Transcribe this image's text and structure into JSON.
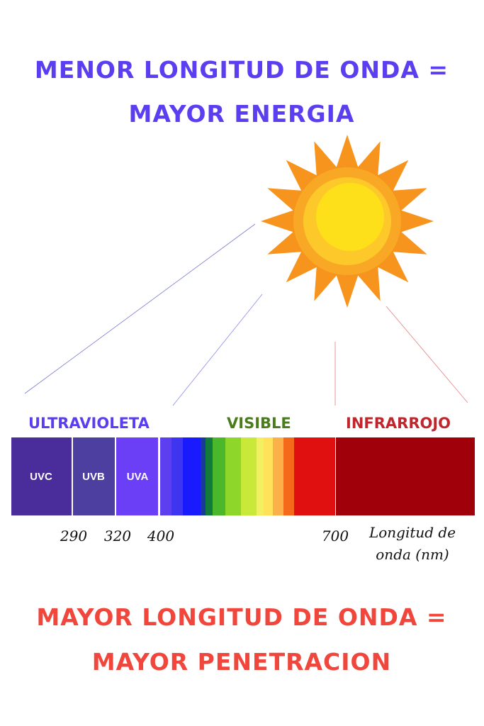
{
  "header": {
    "line1": "MENOR LONGITUD DE ONDA =",
    "line2": "MAYOR ENERGIA"
  },
  "bands": {
    "ultraviolet": "ULTRAVIOLETA",
    "visible": "VISIBLE",
    "infrared": "INFRARROJO",
    "uvc": "UVC",
    "uvb": "UVB",
    "uva": "UVA"
  },
  "wavelengths": [
    290,
    320,
    400,
    700
  ],
  "axis_label": {
    "line1": "Longitud de",
    "line2": "onda (nm)"
  },
  "footer": {
    "line1": "MAYOR LONGITUD DE ONDA =",
    "line2": "MAYOR PENETRACION"
  }
}
